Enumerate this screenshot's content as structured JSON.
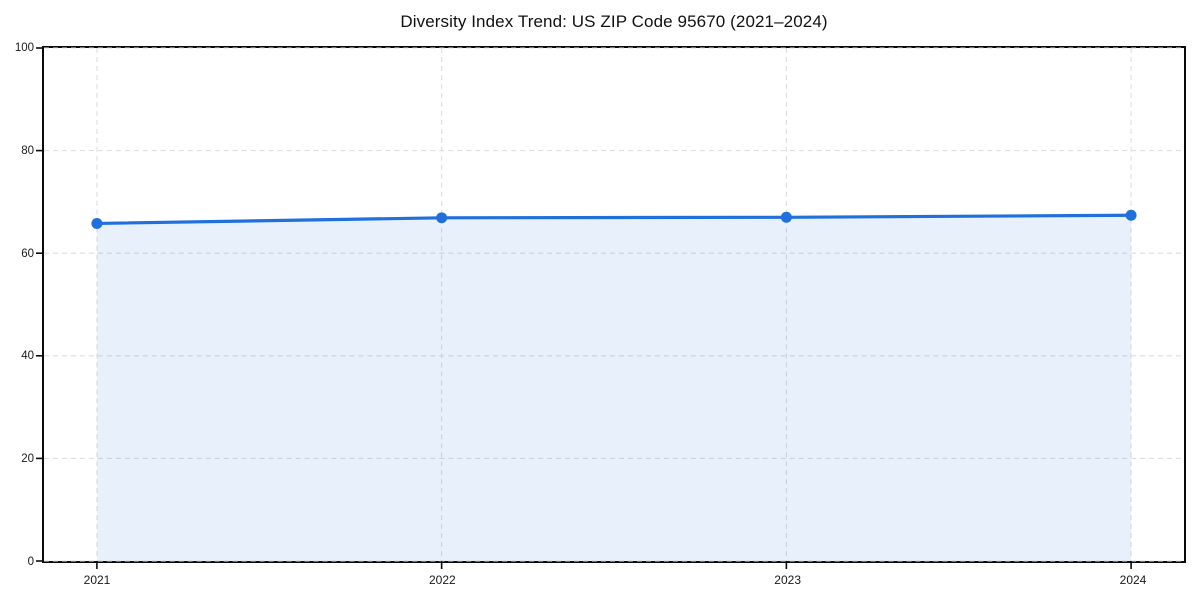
{
  "chart_data": {
    "type": "area",
    "title": "Diversity Index Trend: US ZIP Code 95670 (2021–2024)",
    "categories": [
      "2021",
      "2022",
      "2023",
      "2024"
    ],
    "series": [
      {
        "name": "Diversity Index",
        "values": [
          65.8,
          66.9,
          67.0,
          67.4
        ]
      }
    ],
    "xlabel": "",
    "ylabel": "",
    "ylim": [
      0,
      100
    ],
    "yticks": [
      0,
      20,
      40,
      60,
      80,
      100
    ],
    "grid": "dashed-both-axes",
    "legend_position": "none",
    "line_color": "#1f6fdc",
    "marker_shape": "circle",
    "fill_color": "#1f6fdc",
    "fill_opacity": 0.1,
    "spine_color": "#0a0a0a",
    "background_color": "#ffffff"
  }
}
